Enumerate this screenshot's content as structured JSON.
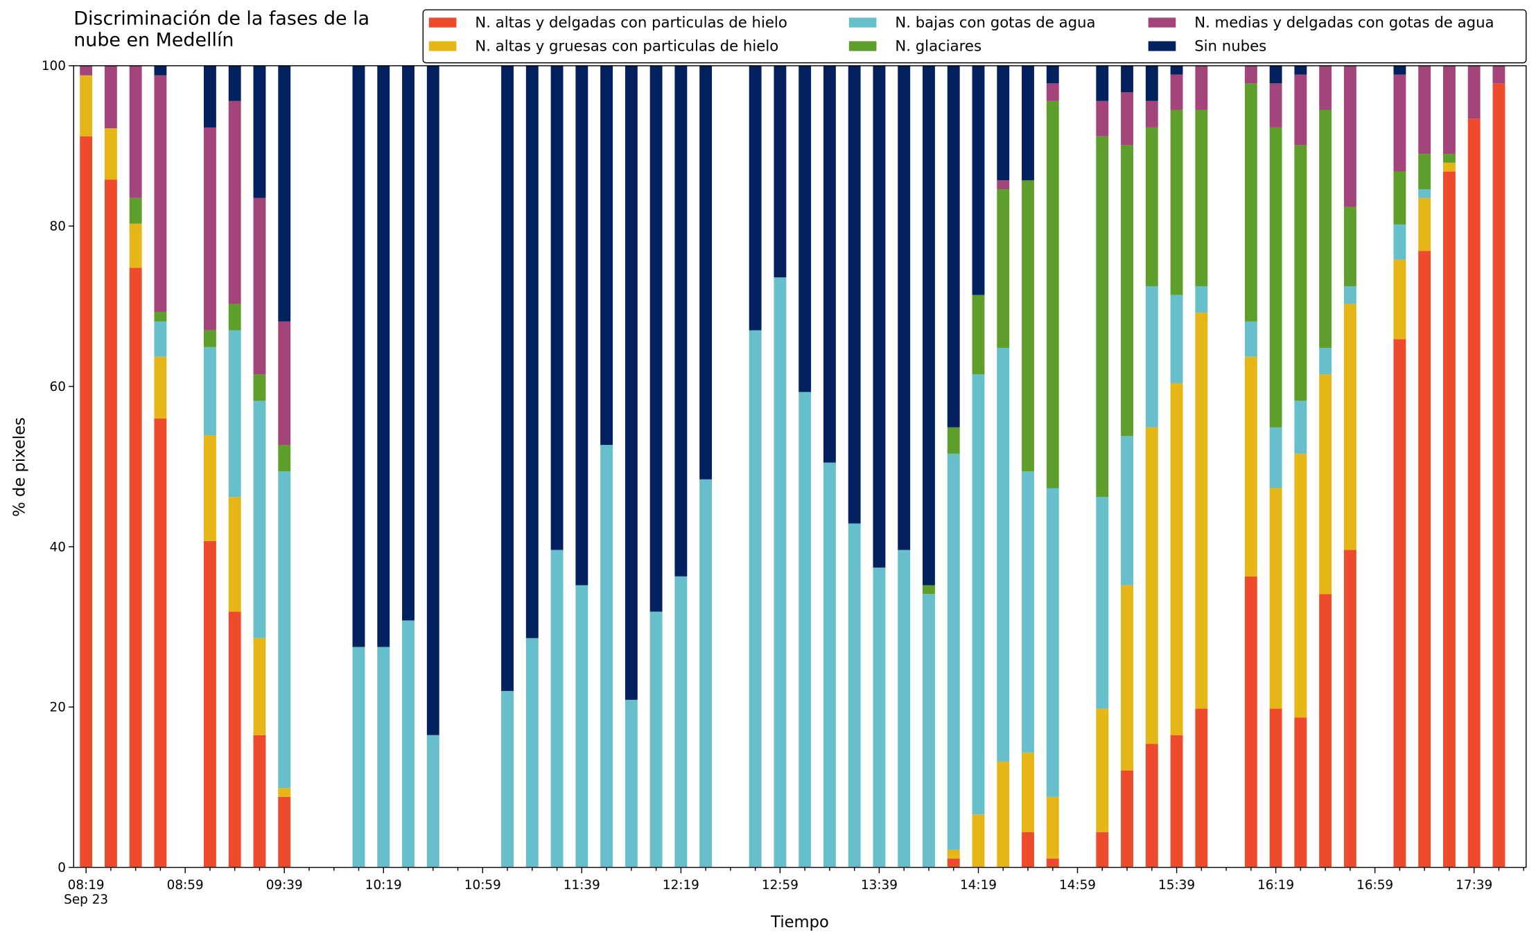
{
  "chart_data": {
    "type": "stacked_bar",
    "title": "Discriminación de la fases de la\nnube en Medellín",
    "xlabel": "Tiempo",
    "ylabel": "% de pixeles",
    "x": [
      "08:19",
      "08:29",
      "08:39",
      "08:49",
      "09:09",
      "09:19",
      "09:29",
      "09:39",
      "10:09",
      "10:19",
      "10:29",
      "10:39",
      "11:09",
      "11:19",
      "11:29",
      "11:39",
      "11:49",
      "11:59",
      "12:09",
      "12:19",
      "12:29",
      "12:49",
      "12:59",
      "13:09",
      "13:19",
      "13:29",
      "13:39",
      "13:49",
      "13:59",
      "14:09",
      "14:19",
      "14:29",
      "14:39",
      "14:49",
      "15:09",
      "15:19",
      "15:29",
      "15:39",
      "15:49",
      "16:09",
      "16:19",
      "16:29",
      "16:39",
      "16:49",
      "17:09",
      "17:19",
      "17:29",
      "17:39",
      "17:49"
    ],
    "series": [
      {
        "name": "N. altas y delgadas con particulas de hielo",
        "color": "#ee4a2c",
        "values": [
          91.2,
          85.8,
          74.8,
          56,
          40.7,
          31.9,
          16.5,
          8.8,
          0,
          0,
          0,
          0,
          0,
          0,
          0,
          0,
          0,
          0,
          0,
          0,
          0,
          0,
          0,
          0,
          0,
          0,
          0,
          0,
          0,
          1.1,
          0,
          0,
          4.4,
          1.1,
          4.4,
          12.1,
          15.4,
          16.5,
          19.8,
          36.3,
          19.8,
          18.7,
          34.1,
          39.6,
          65.9,
          76.9,
          86.8,
          93.4,
          97.8
        ]
      },
      {
        "name": "N. altas y gruesas con particulas de hielo",
        "color": "#e5b616",
        "values": [
          7.6,
          6.4,
          5.5,
          7.7,
          13.2,
          14.3,
          12.1,
          1.1,
          0,
          0,
          0,
          0,
          0,
          0,
          0,
          0,
          0,
          0,
          0,
          0,
          0,
          0,
          0,
          0,
          0,
          0,
          0,
          0,
          0,
          1.1,
          6.6,
          13.2,
          9.9,
          7.7,
          15.4,
          23.1,
          39.5,
          43.9,
          49.4,
          27.4,
          27.5,
          32.9,
          27.4,
          30.7,
          9.9,
          6.6,
          1.1,
          0,
          0
        ]
      },
      {
        "name": "N. bajas con gotas de agua",
        "color": "#66bfcb",
        "values": [
          0,
          0,
          0,
          4.4,
          11,
          20.8,
          29.6,
          39.5,
          27.5,
          27.5,
          30.8,
          16.5,
          22,
          28.6,
          39.6,
          35.2,
          52.7,
          20.9,
          31.9,
          36.3,
          48.4,
          67,
          73.6,
          59.3,
          50.5,
          42.9,
          37.4,
          39.6,
          34.1,
          49.4,
          54.9,
          51.6,
          35.1,
          38.5,
          26.4,
          18.6,
          17.6,
          11,
          3.3,
          4.4,
          7.6,
          6.6,
          3.3,
          2.2,
          4.4,
          1.1,
          0,
          0,
          0
        ]
      },
      {
        "name": "N. glaciares",
        "color": "#5e9f2c",
        "values": [
          0,
          0,
          3.2,
          1.2,
          2.1,
          3.3,
          3.3,
          3.3,
          0,
          0,
          0,
          0,
          0,
          0,
          0,
          0,
          0,
          0,
          0,
          0,
          0,
          0,
          0,
          0,
          0,
          0,
          0,
          0,
          1.1,
          3.3,
          9.9,
          19.8,
          36.3,
          48.3,
          45,
          36.3,
          19.8,
          23.1,
          22,
          29.7,
          37.4,
          31.9,
          29.7,
          9.9,
          6.6,
          4.4,
          1.1,
          0,
          0
        ]
      },
      {
        "name": "N. medias y delgadas con gotas de agua",
        "color": "#a3447a",
        "values": [
          1.2,
          7.8,
          16.5,
          29.5,
          25.3,
          25.3,
          22,
          15.4,
          0,
          0,
          0,
          0,
          0,
          0,
          0,
          0,
          0,
          0,
          0,
          0,
          0,
          0,
          0,
          0,
          0,
          0,
          0,
          0,
          0,
          0,
          0,
          1.1,
          0,
          2.2,
          4.4,
          6.6,
          3.3,
          4.4,
          5.5,
          2.2,
          5.5,
          8.8,
          5.5,
          17.6,
          12.1,
          11,
          11,
          6.6,
          2.2
        ]
      },
      {
        "name": "Sin nubes",
        "color": "#03215e",
        "values": [
          0,
          0,
          0,
          1.2,
          7.7,
          4.4,
          16.5,
          31.9,
          72.5,
          72.5,
          69.2,
          83.5,
          78,
          71.4,
          60.4,
          64.8,
          47.3,
          79.1,
          68.1,
          63.7,
          51.6,
          33,
          26.4,
          40.7,
          49.5,
          57.1,
          62.6,
          60.4,
          64.8,
          45.1,
          28.6,
          14.3,
          14.3,
          2.2,
          4.4,
          3.3,
          4.4,
          1.1,
          0,
          0,
          2.2,
          1.1,
          0,
          0,
          1.1,
          0,
          0,
          0,
          0
        ]
      }
    ],
    "xlim": [
      "08:14",
      "18:00"
    ],
    "xticks": [
      {
        "value": "08:19",
        "label": "08:19\nSep 23"
      },
      "08:59",
      "09:39",
      "10:19",
      "10:59",
      "11:39",
      "12:19",
      "12:59",
      "13:39",
      "14:19",
      "14:59",
      "15:39",
      "16:19",
      "16:59",
      "17:39"
    ],
    "xticks_minor": [
      "08:29",
      "08:39",
      "08:49",
      "09:09",
      "09:19",
      "09:29",
      "09:49",
      "09:59",
      "10:09",
      "10:29",
      "10:39",
      "10:49",
      "11:09",
      "11:19",
      "11:29",
      "11:49",
      "11:59",
      "12:09",
      "12:29",
      "12:39",
      "12:49",
      "13:09",
      "13:19",
      "13:29",
      "13:49",
      "13:59",
      "14:09",
      "14:29",
      "14:39",
      "14:49",
      "15:09",
      "15:19",
      "15:29",
      "15:49",
      "15:59",
      "16:09",
      "16:29",
      "16:39",
      "16:49",
      "17:09",
      "17:19",
      "17:29",
      "17:49",
      "17:59"
    ],
    "ylim": [
      0,
      100
    ],
    "yticks": [
      0,
      20,
      40,
      60,
      80,
      100
    ],
    "legend": "upper right"
  }
}
